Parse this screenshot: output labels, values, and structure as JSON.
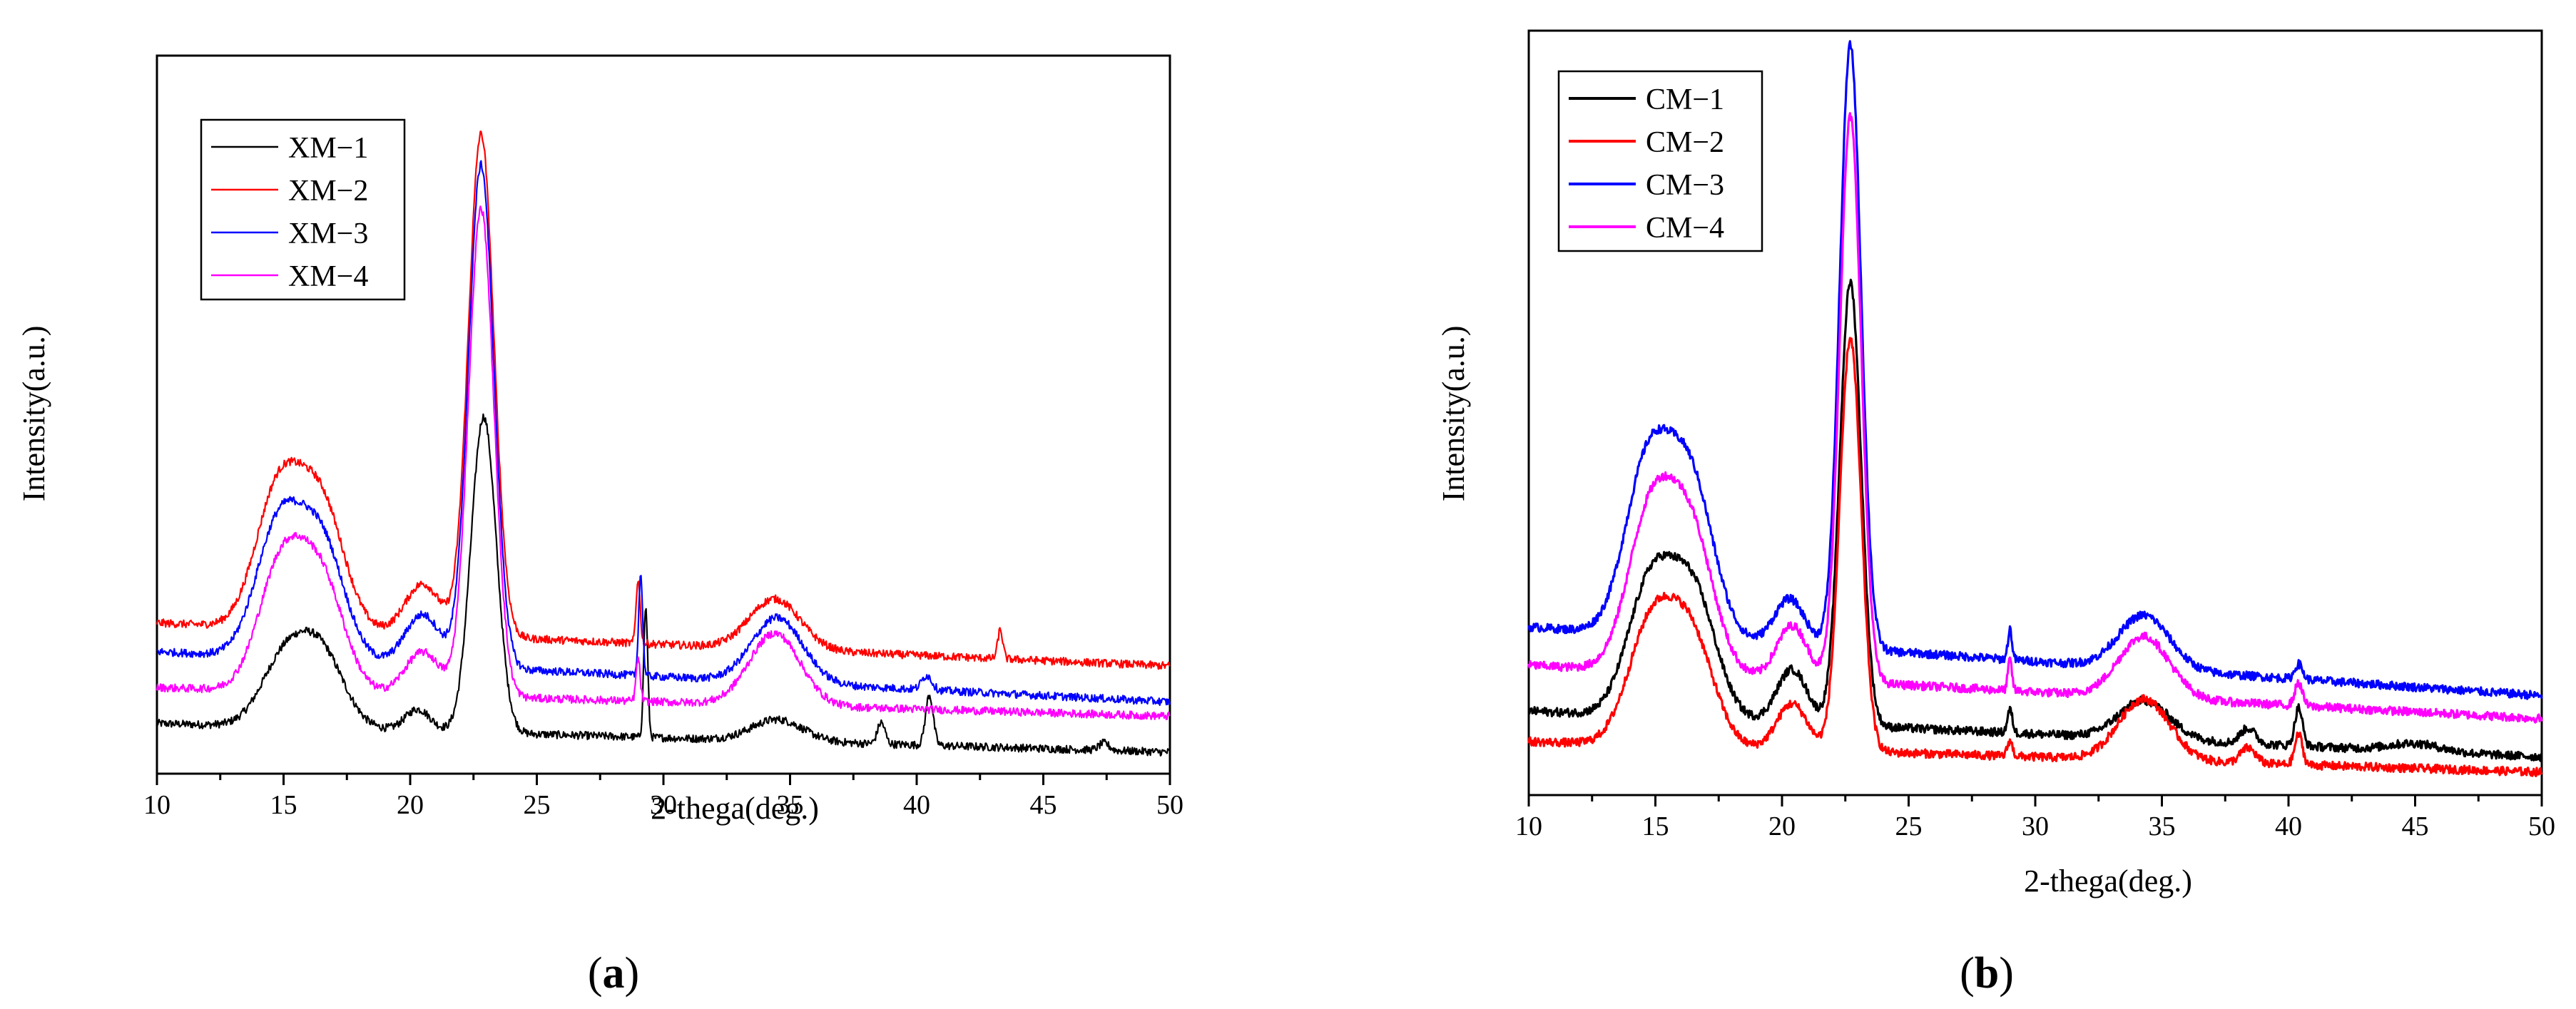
{
  "chart_data": [
    {
      "type": "line",
      "panel_label": "a",
      "xlabel": "2-thega(deg.)",
      "ylabel": "Intensity(a.u.)",
      "xlim": [
        10,
        50
      ],
      "ylim": [
        0,
        100
      ],
      "xticks": [
        10,
        15,
        20,
        25,
        30,
        35,
        40,
        45,
        50
      ],
      "legend": "top-left",
      "series": [
        {
          "name": "XM−1",
          "color": "#000000",
          "baseline": 7,
          "end": 3,
          "scale": 0.55,
          "peaks": [
            [
              15,
              9,
              0.9
            ],
            [
              16.5,
              10,
              0.9
            ],
            [
              20.3,
              3,
              0.5
            ],
            [
              22.9,
              44,
              0.5
            ],
            [
              29.3,
              18,
              0.08
            ],
            [
              34.5,
              3,
              1
            ],
            [
              38.6,
              3,
              0.15
            ],
            [
              40.5,
              7,
              0.15
            ],
            [
              47.4,
              1,
              0.2
            ]
          ]
        },
        {
          "name": "XM−2",
          "color": "#ff0000",
          "baseline": 21,
          "end": 15,
          "scale": 1.0,
          "peaks": [
            [
              14.8,
              19,
              0.9
            ],
            [
              16.5,
              17,
              0.9
            ],
            [
              20.5,
              7,
              0.7
            ],
            [
              22.8,
              70,
              0.5
            ],
            [
              29,
              9,
              0.08
            ],
            [
              34.4,
              7,
              1
            ],
            [
              43.3,
              4,
              0.1
            ]
          ]
        },
        {
          "name": "XM−3",
          "color": "#0000ff",
          "baseline": 17,
          "end": 10,
          "scale": 0.93,
          "peaks": [
            [
              14.8,
              18,
              0.9
            ],
            [
              16.5,
              16,
              0.9
            ],
            [
              20.5,
              7,
              0.7
            ],
            [
              22.8,
              70,
              0.5
            ],
            [
              29.1,
              14,
              0.08
            ],
            [
              34.5,
              9,
              1
            ],
            [
              40.4,
              2,
              0.2
            ]
          ]
        },
        {
          "name": "XM−4",
          "color": "#ff00ff",
          "baseline": 12,
          "end": 8,
          "scale": 0.88,
          "peaks": [
            [
              14.9,
              17,
              0.9
            ],
            [
              16.5,
              15,
              0.9
            ],
            [
              20.5,
              6,
              0.7
            ],
            [
              22.8,
              68,
              0.5
            ],
            [
              29,
              6,
              0.08
            ],
            [
              34.4,
              10,
              1
            ]
          ]
        }
      ]
    },
    {
      "type": "line",
      "panel_label": "b",
      "xlabel": "2-thega(deg.)",
      "ylabel": "Intensity(a.u.)",
      "xlim": [
        10,
        50
      ],
      "ylim": [
        0,
        100
      ],
      "xticks": [
        10,
        15,
        20,
        25,
        30,
        35,
        40,
        45,
        50
      ],
      "legend": "top-left",
      "series": [
        {
          "name": "CM−1",
          "color": "#000000",
          "baseline": 11,
          "end": 5,
          "scale": 0.74,
          "peaks": [
            [
              14.8,
              17,
              0.9
            ],
            [
              16.5,
              16,
              0.9
            ],
            [
              20.4,
              7,
              0.6
            ],
            [
              22.7,
              58,
              0.42
            ],
            [
              29,
              3,
              0.1
            ],
            [
              34.3,
              5,
              1
            ],
            [
              38.4,
              2,
              0.3
            ],
            [
              40.4,
              5,
              0.15
            ],
            [
              45,
              1,
              1
            ]
          ]
        },
        {
          "name": "CM−2",
          "color": "#ff0000",
          "baseline": 7,
          "end": 3,
          "scale": 0.64,
          "peaks": [
            [
              14.8,
              15,
              0.9
            ],
            [
              16.4,
              14,
              0.9
            ],
            [
              20.4,
              6,
              0.6
            ],
            [
              22.7,
              54,
              0.42
            ],
            [
              29,
              2,
              0.1
            ],
            [
              34.3,
              8,
              1
            ],
            [
              38.4,
              2,
              0.3
            ],
            [
              40.4,
              4,
              0.15
            ]
          ]
        },
        {
          "name": "CM−3",
          "color": "#0000ff",
          "baseline": 22,
          "end": 13,
          "scale": 1.0,
          "peaks": [
            [
              14.7,
              22,
              0.9
            ],
            [
              16.4,
              20,
              0.9
            ],
            [
              20.3,
              6,
              0.6
            ],
            [
              22.7,
              79,
              0.42
            ],
            [
              29,
              4,
              0.08
            ],
            [
              34.3,
              7,
              1
            ],
            [
              40.4,
              2,
              0.15
            ]
          ]
        },
        {
          "name": "CM−4",
          "color": "#ff00ff",
          "baseline": 17,
          "end": 10,
          "scale": 0.9,
          "peaks": [
            [
              14.8,
              20,
              0.9
            ],
            [
              16.4,
              18,
              0.9
            ],
            [
              20.4,
              7,
              0.6
            ],
            [
              22.7,
              74,
              0.42
            ],
            [
              29,
              4,
              0.08
            ],
            [
              34.3,
              8,
              1
            ],
            [
              40.4,
              3,
              0.15
            ]
          ]
        }
      ]
    }
  ]
}
